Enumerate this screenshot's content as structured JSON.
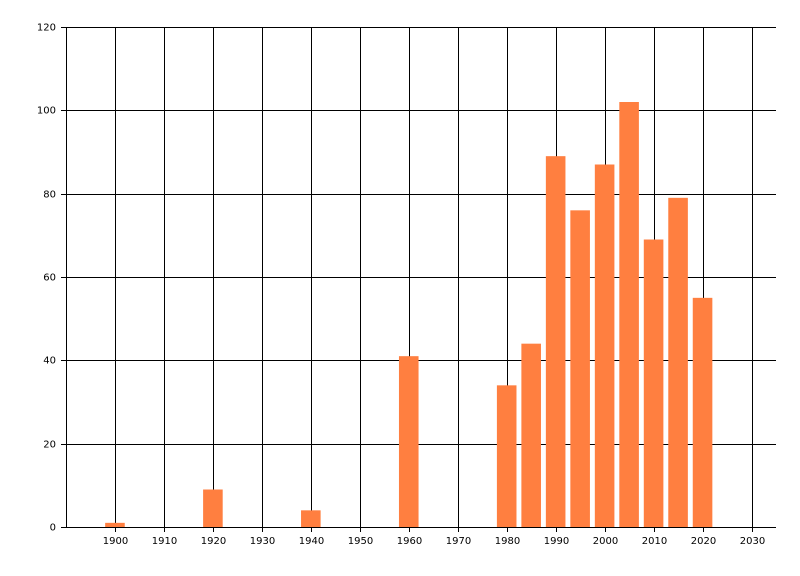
{
  "chart_data": {
    "type": "bar",
    "x": [
      1900,
      1920,
      1940,
      1960,
      1980,
      1985,
      1990,
      1995,
      2000,
      2005,
      2010,
      2015,
      2020
    ],
    "values": [
      1,
      9,
      4,
      41,
      34,
      44,
      89,
      76,
      87,
      102,
      69,
      79,
      55
    ],
    "color": "#ff7f40",
    "xlim": [
      1890,
      2035
    ],
    "xticks": [
      1900,
      1910,
      1920,
      1930,
      1940,
      1950,
      1960,
      1970,
      1980,
      1990,
      2000,
      2010,
      2020,
      2030
    ],
    "ylim": [
      0,
      120
    ],
    "yticks": [
      0,
      20,
      40,
      60,
      80,
      100,
      120
    ],
    "grid": true
  }
}
